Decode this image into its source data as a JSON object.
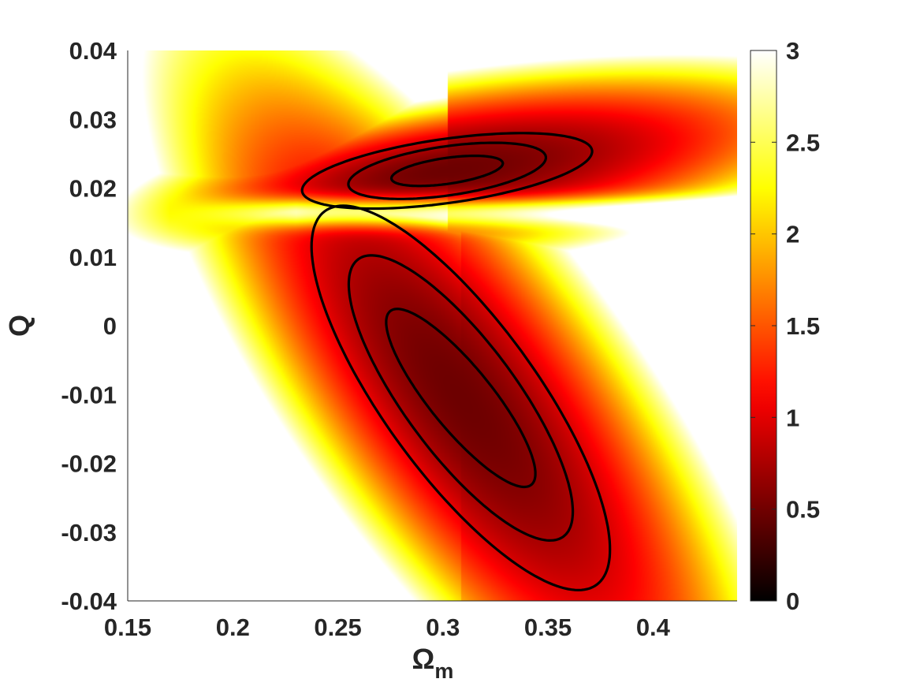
{
  "chart_data": {
    "type": "heatmap",
    "title": "",
    "xlabel": {
      "symbol": "Ω",
      "subscript": "m"
    },
    "ylabel": "Q",
    "xlim": [
      0.15,
      0.44
    ],
    "ylim": [
      -0.04,
      0.04
    ],
    "xticks": [
      "0.15",
      "0.2",
      "0.25",
      "0.3",
      "0.35",
      "0.4"
    ],
    "xtick_values": [
      0.15,
      0.2,
      0.25,
      0.3,
      0.35,
      0.4
    ],
    "yticks": [
      "0.04",
      "0.03",
      "0.02",
      "0.01",
      "0",
      "-0.01",
      "-0.02",
      "-0.03",
      "-0.04"
    ],
    "ytick_values": [
      0.04,
      0.03,
      0.02,
      0.01,
      0,
      -0.01,
      -0.02,
      -0.03,
      -0.04
    ],
    "colorbar": {
      "min": 0,
      "max": 3,
      "colormap": "hot",
      "ticks": [
        "3",
        "2.5",
        "2",
        "1.5",
        "1",
        "0.5",
        "0"
      ],
      "tick_values": [
        3,
        2.5,
        2,
        1.5,
        1,
        0.5,
        0
      ]
    },
    "regions": [
      {
        "name": "upper",
        "center": [
          0.302,
          0.0225
        ],
        "contours": [
          {
            "semi_x": 0.0265,
            "semi_y": 0.0019,
            "tilt": 0.041
          },
          {
            "semi_x": 0.047,
            "semi_y": 0.0036,
            "tilt": 0.041
          },
          {
            "semi_x": 0.069,
            "semi_y": 0.0047,
            "tilt": 0.041
          }
        ]
      },
      {
        "name": "lower",
        "center": [
          0.3085,
          -0.0105
        ],
        "contours": [
          {
            "semi_x": 0.0355,
            "semi_y": 0.0068,
            "tilt": -0.31
          },
          {
            "semi_x": 0.0533,
            "semi_y": 0.0125,
            "tilt": -0.31
          },
          {
            "semi_x": 0.071,
            "semi_y": 0.0172,
            "tilt": -0.31
          }
        ]
      }
    ],
    "contour_color": "#000000",
    "grid": false,
    "legend": "none"
  }
}
